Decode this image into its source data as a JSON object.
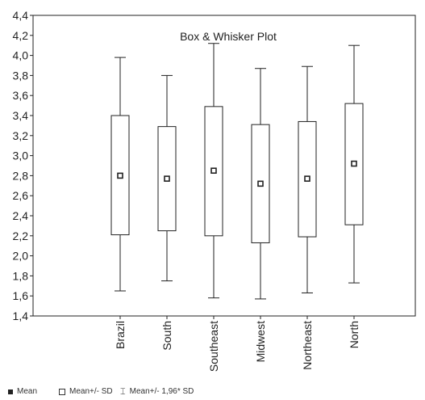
{
  "chart_data": {
    "type": "box",
    "title": "Box & Whisker Plot",
    "categories": [
      "Brazil",
      "South",
      "Southeast",
      "Midwest",
      "Northeast",
      "North"
    ],
    "series": [
      {
        "mean": [
          2.8,
          2.77,
          2.85,
          2.72,
          2.77,
          2.92
        ],
        "box_low": [
          2.21,
          2.25,
          2.2,
          2.13,
          2.19,
          2.31
        ],
        "box_high": [
          3.4,
          3.29,
          3.49,
          3.31,
          3.34,
          3.52
        ],
        "whisker_low": [
          1.65,
          1.75,
          1.58,
          1.57,
          1.63,
          1.73
        ],
        "whisker_high": [
          3.98,
          3.8,
          4.12,
          3.87,
          3.89,
          4.1
        ]
      }
    ],
    "ylim": [
      1.4,
      4.4
    ],
    "yticks": [
      "1,4",
      "1,6",
      "1,8",
      "2,0",
      "2,2",
      "2,4",
      "2,6",
      "2,8",
      "3,0",
      "3,2",
      "3,4",
      "3,6",
      "3,8",
      "4,0",
      "4,2",
      "4,4"
    ],
    "grid": false,
    "legend": {
      "placement": "bottom-left",
      "items": [
        {
          "symbol": "filled-square",
          "label": "Mean"
        },
        {
          "symbol": "open-square",
          "label": "Mean+/- SD"
        },
        {
          "symbol": "whisker",
          "label": "Mean+/- 1,96* SD"
        }
      ]
    }
  }
}
